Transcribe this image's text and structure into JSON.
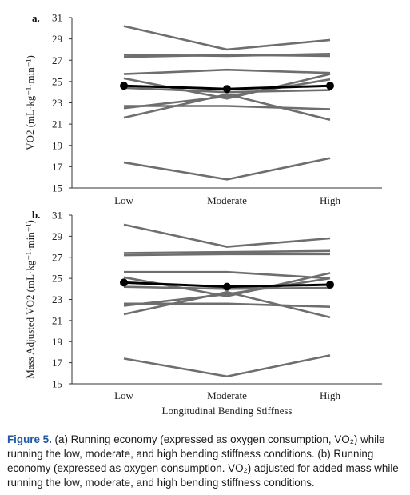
{
  "figure": {
    "caption_label": "Figure 5.",
    "caption_text": " (a) Running economy (expressed as oxygen consumption, VO₂) while running the low, moderate, and high bending stiffness conditions. (b) Running economy (expressed as oxygen consumption. VO₂) adjusted for added mass while running the low, moderate, and high bending stiffness conditions."
  },
  "colors": {
    "individual": "#6e6e6e",
    "mean": "#000000",
    "caption_label": "#1f57a6"
  },
  "chart_data": [
    {
      "type": "line",
      "panel_label": "a.",
      "categories": [
        "Low",
        "Moderate",
        "High"
      ],
      "xlabel": "",
      "ylabel": "VO2 (mL·kg⁻¹·min⁻¹)",
      "ylim": [
        15,
        31
      ],
      "yticks": [
        15,
        17,
        19,
        21,
        23,
        25,
        27,
        29,
        31
      ],
      "grid": false,
      "series": [
        {
          "values": [
            30.2,
            28.0,
            28.9
          ]
        },
        {
          "values": [
            27.5,
            27.4,
            27.6
          ]
        },
        {
          "values": [
            27.3,
            27.5,
            27.4
          ]
        },
        {
          "values": [
            25.7,
            26.1,
            25.8
          ]
        },
        {
          "values": [
            25.3,
            23.4,
            25.7
          ]
        },
        {
          "values": [
            24.4,
            24.0,
            24.2
          ]
        },
        {
          "values": [
            22.7,
            22.7,
            22.4
          ]
        },
        {
          "values": [
            21.6,
            23.8,
            21.4
          ]
        },
        {
          "values": [
            22.5,
            23.6,
            25.2
          ]
        },
        {
          "values": [
            17.4,
            15.8,
            17.8
          ]
        }
      ],
      "mean": {
        "values": [
          24.6,
          24.3,
          24.6
        ]
      }
    },
    {
      "type": "line",
      "panel_label": "b.",
      "categories": [
        "Low",
        "Moderate",
        "High"
      ],
      "xlabel": "Longitudinal Bending Stiffness",
      "ylabel": "Mass Adjusted VO2 (mL·kg⁻¹·min⁻¹)",
      "ylim": [
        15,
        31
      ],
      "yticks": [
        15,
        17,
        19,
        21,
        23,
        25,
        27,
        29,
        31
      ],
      "grid": false,
      "series": [
        {
          "values": [
            30.1,
            28.0,
            28.8
          ]
        },
        {
          "values": [
            27.4,
            27.5,
            27.6
          ]
        },
        {
          "values": [
            27.2,
            27.3,
            27.3
          ]
        },
        {
          "values": [
            25.6,
            25.6,
            25.0
          ]
        },
        {
          "values": [
            25.1,
            23.3,
            25.5
          ]
        },
        {
          "values": [
            24.2,
            24.0,
            24.1
          ]
        },
        {
          "values": [
            22.6,
            22.6,
            22.3
          ]
        },
        {
          "values": [
            21.6,
            23.7,
            21.3
          ]
        },
        {
          "values": [
            22.4,
            23.5,
            25.0
          ]
        },
        {
          "values": [
            17.4,
            15.7,
            17.7
          ]
        }
      ],
      "mean": {
        "values": [
          24.6,
          24.2,
          24.4
        ]
      }
    }
  ]
}
